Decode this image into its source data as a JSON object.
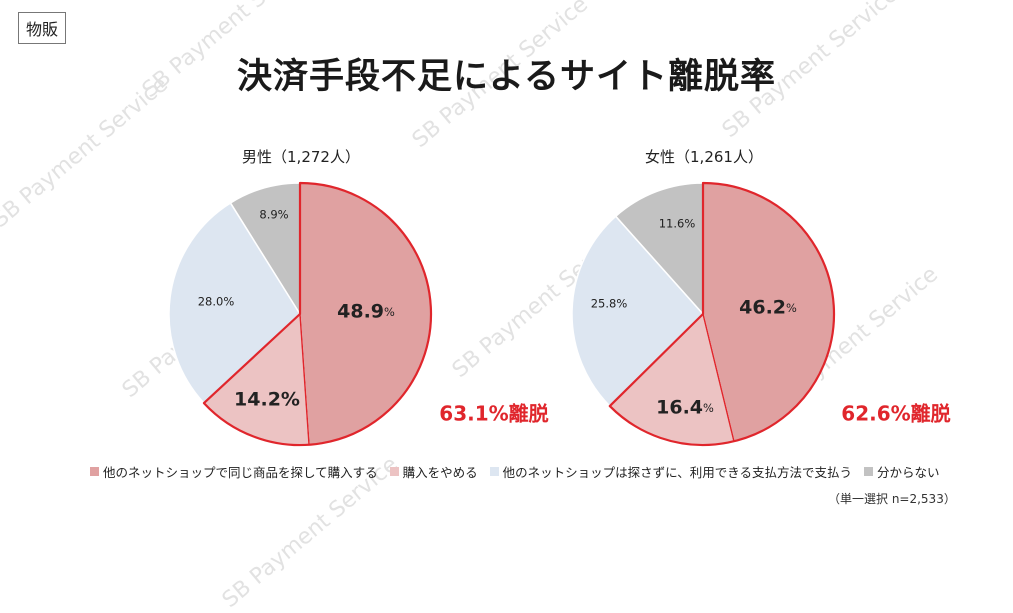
{
  "tag_label": "物販",
  "title": "決済手段不足によるサイト離脱率",
  "watermark": "SB Payment Service",
  "colors": {
    "other_site_purchase": "#e0a1a1",
    "stop_buying": "#ecc3c3",
    "other_payment": "#dde6f1",
    "unknown": "#c2c2c2",
    "highlight": "#e0262c"
  },
  "chart_data": [
    {
      "type": "pie",
      "title": "男性（1,272人）",
      "slices": [
        {
          "label": "他のネットショップで同じ商品を探して購入する",
          "value": 48.9,
          "text": "48.9",
          "suffix": "%"
        },
        {
          "label": "購入をやめる",
          "value": 14.2,
          "text": "14.2%",
          "suffix": ""
        },
        {
          "label": "他のネットショップは探さずに、利用できる支払方法で支払う",
          "value": 28.0,
          "text": "28.0%",
          "suffix": ""
        },
        {
          "label": "分からない",
          "value": 8.9,
          "text": "8.9%",
          "suffix": ""
        }
      ],
      "highlight_label": "63.1%離脱"
    },
    {
      "type": "pie",
      "title": "女性（1,261人）",
      "slices": [
        {
          "label": "他のネットショップで同じ商品を探して購入する",
          "value": 46.2,
          "text": "46.2",
          "suffix": "%"
        },
        {
          "label": "購入をやめる",
          "value": 16.4,
          "text": "16.4",
          "suffix": "%"
        },
        {
          "label": "他のネットショップは探さずに、利用できる支払方法で支払う",
          "value": 25.8,
          "text": "25.8%",
          "suffix": ""
        },
        {
          "label": "分からない",
          "value": 11.6,
          "text": "11.6%",
          "suffix": ""
        }
      ],
      "highlight_label": "62.6%離脱"
    }
  ],
  "legend": [
    {
      "label": "他のネットショップで同じ商品を探して購入する",
      "color_key": "other_site_purchase"
    },
    {
      "label": "購入をやめる",
      "color_key": "stop_buying"
    },
    {
      "label": "他のネットショップは探さずに、利用できる支払方法で支払う",
      "color_key": "other_payment"
    },
    {
      "label": "分からない",
      "color_key": "unknown"
    }
  ],
  "note": "（単一選択 n=2,533）"
}
